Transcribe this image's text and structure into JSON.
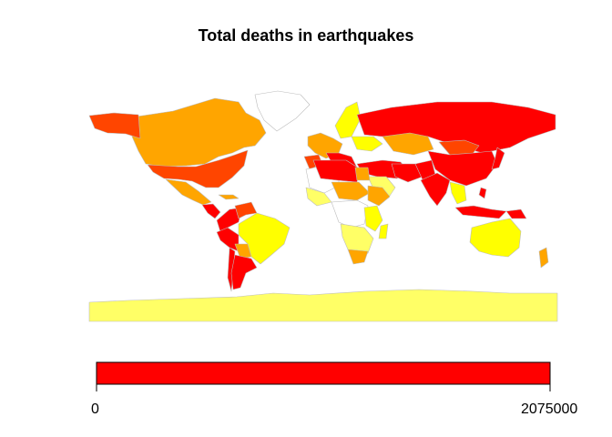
{
  "title": "Total deaths in earthquakes",
  "legend": {
    "min_label": "0",
    "max_label": "2075000",
    "fill_color": "#ff0000"
  },
  "palette": [
    "#ffff66",
    "#ffff00",
    "#ffa500",
    "#ff4500",
    "#ff0000"
  ],
  "map_background": "#ffffff"
}
